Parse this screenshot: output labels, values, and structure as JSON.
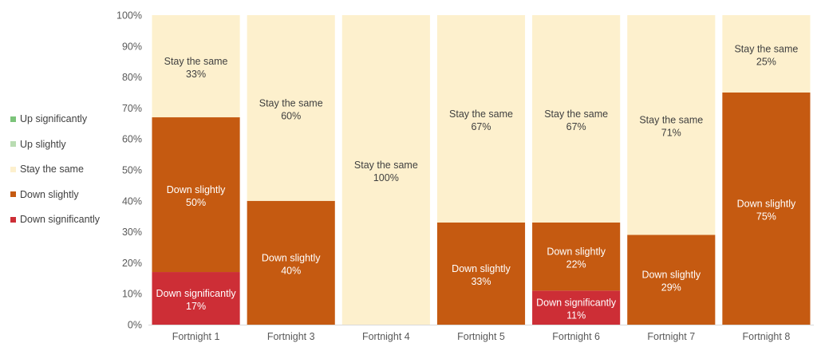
{
  "chart_data": {
    "type": "bar",
    "stacked": true,
    "percent": true,
    "categories": [
      "Fortnight 1",
      "Fortnight 3",
      "Fortnight 4",
      "Fortnight 5",
      "Fortnight 6",
      "Fortnight 7",
      "Fortnight 8"
    ],
    "series": [
      {
        "name": "Down significantly",
        "color": "#cd2e36",
        "values": [
          17,
          0,
          0,
          0,
          11,
          0,
          0
        ]
      },
      {
        "name": "Down slightly",
        "color": "#c55a11",
        "values": [
          50,
          40,
          0,
          33,
          22,
          29,
          75
        ]
      },
      {
        "name": "Stay the same",
        "color": "#fdf0cd",
        "values": [
          33,
          60,
          100,
          67,
          67,
          71,
          25
        ]
      },
      {
        "name": "Up slightly",
        "color": "#b9dcb2",
        "values": [
          0,
          0,
          0,
          0,
          0,
          0,
          0
        ]
      },
      {
        "name": "Up significantly",
        "color": "#7cc47a",
        "values": [
          0,
          0,
          0,
          0,
          0,
          0,
          0
        ]
      }
    ],
    "legend_order": [
      "Up significantly",
      "Up slightly",
      "Stay the same",
      "Down slightly",
      "Down significantly"
    ],
    "ylim": [
      0,
      100
    ],
    "yticks": [
      "0%",
      "10%",
      "20%",
      "30%",
      "40%",
      "50%",
      "60%",
      "70%",
      "80%",
      "90%",
      "100%"
    ],
    "legend_position": "left",
    "grid": false,
    "title": "",
    "xlabel": "",
    "ylabel": ""
  }
}
